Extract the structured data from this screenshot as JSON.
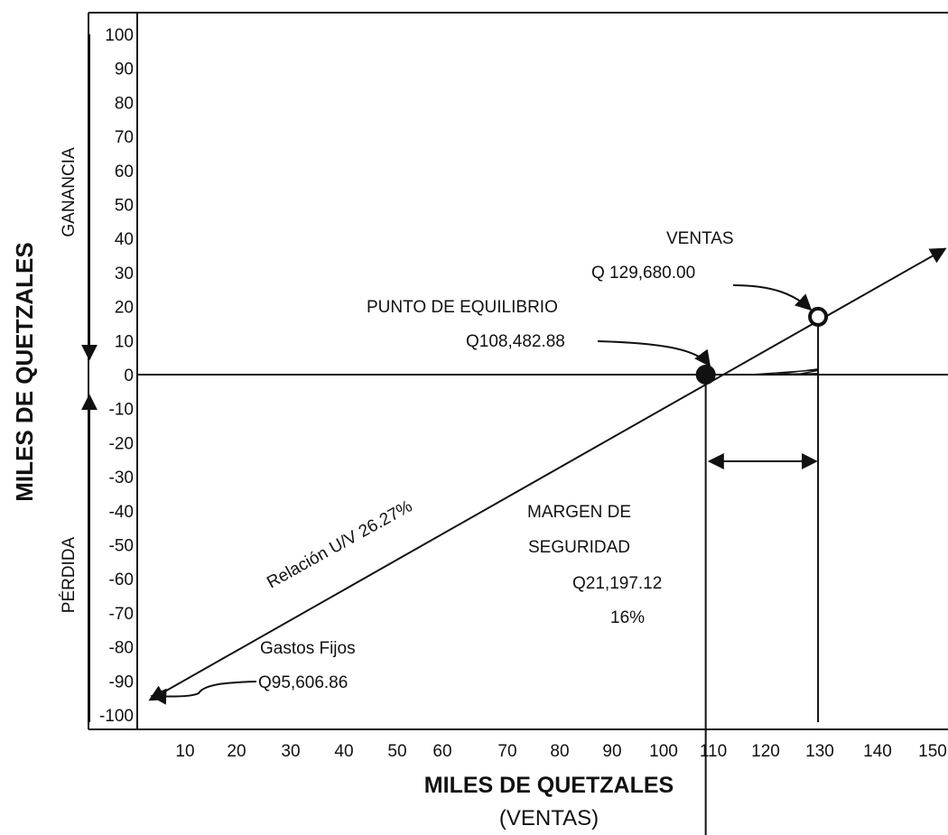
{
  "chart_data": {
    "type": "line",
    "title": "",
    "ylabel": "MILES DE QUETZALES",
    "xlabel": "MILES DE QUETZALES",
    "xlabel_sub": "(VENTAS)",
    "y_ticks": [
      "100",
      "90",
      "80",
      "70",
      "60",
      "50",
      "40",
      "30",
      "20",
      "10",
      "0",
      "-10",
      "-20",
      "-30",
      "-40",
      "-50",
      "-60",
      "-70",
      "-80",
      "-90",
      "-100"
    ],
    "x_ticks": [
      "10",
      "20",
      "30",
      "40",
      "50",
      "60",
      "70",
      "80",
      "90",
      "100",
      "110",
      "120",
      "130",
      "140",
      "150"
    ],
    "xlim": [
      0,
      150
    ],
    "ylim": [
      -100,
      100
    ],
    "grid": false,
    "series": [
      {
        "x": [
          0,
          129.68,
          150
        ],
        "y": [
          -95.6,
          17,
          37
        ]
      }
    ],
    "region_labels": {
      "upper": "GANANCIA",
      "lower": "PÉRDIDA"
    },
    "annotations": {
      "line_label": "Relación U/V 26.27%",
      "fixed_costs_title": "Gastos Fijos",
      "fixed_costs_value": "Q95,606.86",
      "breakeven_title": "PUNTO DE EQUILIBRIO",
      "breakeven_value": "Q108,482.88",
      "sales_title": "VENTAS",
      "sales_value": "Q 129,680.00",
      "margin_title_1": "MARGEN DE",
      "margin_title_2": "SEGURIDAD",
      "margin_value": "Q21,197.12",
      "margin_percent": "16%"
    },
    "points": {
      "breakeven": {
        "x": 108.48,
        "y": 0
      },
      "sales": {
        "x": 129.68,
        "y": 17
      },
      "fixed_costs": {
        "x": 0,
        "y": -95.6
      }
    },
    "colors": {
      "ink": "#111111"
    }
  }
}
